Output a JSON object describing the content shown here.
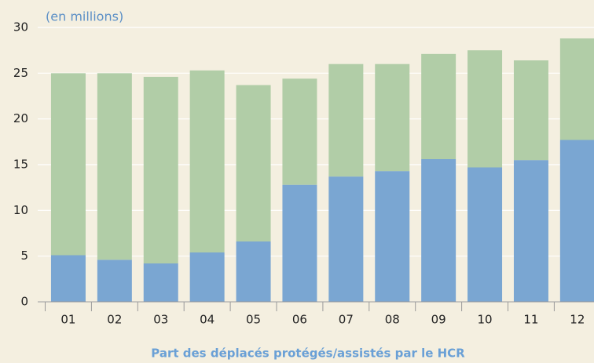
{
  "chart_data": {
    "type": "stacked_bar",
    "unit_label": "(en millions)",
    "xlabel": "Part des déplacés protégés/assistés par le HCR",
    "categories": [
      "01",
      "02",
      "03",
      "04",
      "05",
      "06",
      "07",
      "08",
      "09",
      "10",
      "11",
      "12"
    ],
    "series": [
      {
        "color": "#7aa6d2",
        "values": [
          5.1,
          4.6,
          4.2,
          5.4,
          6.6,
          12.8,
          13.7,
          14.3,
          15.6,
          14.7,
          15.5,
          17.7
        ]
      },
      {
        "color": "#b1cda7",
        "values": [
          19.9,
          20.4,
          20.4,
          19.9,
          17.1,
          11.6,
          12.3,
          11.7,
          11.5,
          12.8,
          10.9,
          11.1
        ]
      }
    ],
    "ylim": [
      0,
      30
    ],
    "yticks": [
      0,
      5,
      10,
      15,
      20,
      25,
      30
    ],
    "grid": true
  }
}
